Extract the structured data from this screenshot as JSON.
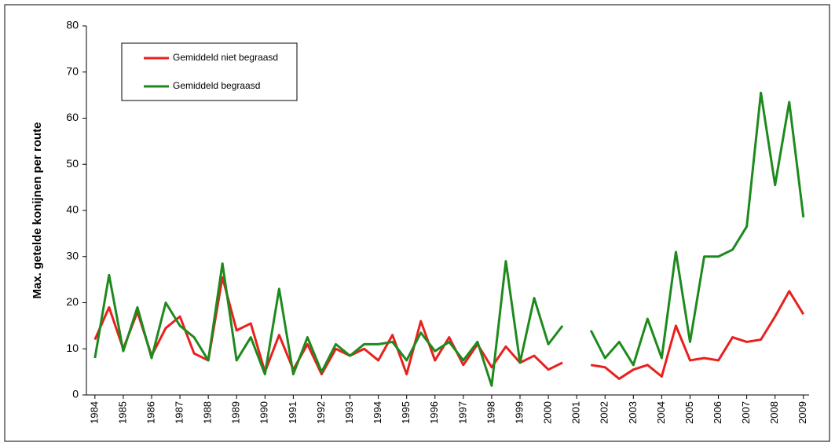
{
  "chart_data": {
    "type": "line",
    "y_label": "Max. getelde konijnen per route",
    "x": [
      1984,
      1984.5,
      1985,
      1985.5,
      1986,
      1986.5,
      1987,
      1987.5,
      1988,
      1988.5,
      1989,
      1989.5,
      1990,
      1990.5,
      1991,
      1991.5,
      1992,
      1992.5,
      1993,
      1993.5,
      1994,
      1994.5,
      1995,
      1995.5,
      1996,
      1996.5,
      1997,
      1997.5,
      1998,
      1998.5,
      1999,
      1999.5,
      2000,
      2000.5,
      2001,
      2001.5,
      2002,
      2002.5,
      2003,
      2003.5,
      2004,
      2004.5,
      2005,
      2005.5,
      2006,
      2006.5,
      2007,
      2007.5,
      2008,
      2008.5,
      2009
    ],
    "series": [
      {
        "name": "Gemiddeld niet begraasd",
        "color": "#e8201e",
        "values": [
          12,
          19,
          10,
          18,
          8.5,
          14.5,
          17,
          9,
          7.5,
          25.5,
          14,
          15.5,
          5,
          13,
          5.5,
          11,
          4.5,
          10,
          8.5,
          10,
          7.5,
          13,
          4.5,
          16,
          7.5,
          12.5,
          6.5,
          11,
          6,
          10.5,
          7,
          8.5,
          5.5,
          7,
          null,
          6.5,
          6,
          3.5,
          5.5,
          6.5,
          4,
          15,
          7.5,
          8,
          7.5,
          12.5,
          11.5,
          12,
          17,
          22.5,
          17.5
        ]
      },
      {
        "name": "Gemiddeld begraasd",
        "color": "#1e8a1e",
        "values": [
          8,
          26,
          9.5,
          19,
          8,
          20,
          15,
          12.5,
          7.5,
          28.5,
          7.5,
          12.5,
          4.5,
          23,
          4.5,
          12.5,
          5,
          11,
          8.5,
          11,
          11,
          11.5,
          7.5,
          13.5,
          9.5,
          11.5,
          7.5,
          11.5,
          2,
          29,
          7,
          21,
          11,
          15,
          null,
          14,
          8,
          11.5,
          6.5,
          16.5,
          8,
          31,
          11.5,
          30,
          30,
          31.5,
          36.5,
          65.5,
          45.5,
          63.5,
          38.5
        ]
      }
    ],
    "xlim": [
      1983.7,
      2009.2
    ],
    "xticks": [
      1984,
      1985,
      1986,
      1987,
      1988,
      1989,
      1990,
      1991,
      1992,
      1993,
      1994,
      1995,
      1996,
      1997,
      1998,
      1999,
      2000,
      2001,
      2002,
      2003,
      2004,
      2005,
      2006,
      2007,
      2008,
      2009
    ],
    "ylim": [
      0,
      80
    ],
    "yticks": [
      0,
      10,
      20,
      30,
      40,
      50,
      60,
      70,
      80
    ],
    "legend": "upper left"
  }
}
